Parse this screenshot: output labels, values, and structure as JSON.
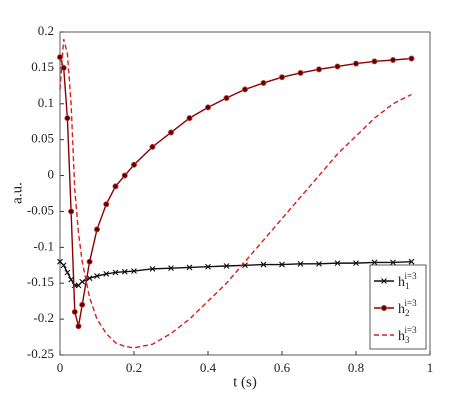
{
  "chart_data": {
    "type": "line",
    "xlabel": "t (s)",
    "ylabel": "a.u.",
    "x": [
      0,
      0.01,
      0.02,
      0.03,
      0.04,
      0.05,
      0.06,
      0.08,
      0.1,
      0.125,
      0.15,
      0.175,
      0.2,
      0.25,
      0.3,
      0.35,
      0.4,
      0.45,
      0.5,
      0.55,
      0.6,
      0.65,
      0.7,
      0.75,
      0.8,
      0.85,
      0.9,
      0.95
    ],
    "series": [
      {
        "name": "h1i=3",
        "color": "#111111",
        "marker": "x",
        "dash": false,
        "values": [
          -0.12,
          -0.125,
          -0.135,
          -0.145,
          -0.153,
          -0.153,
          -0.148,
          -0.143,
          -0.14,
          -0.137,
          -0.135,
          -0.134,
          -0.133,
          -0.13,
          -0.129,
          -0.128,
          -0.127,
          -0.126,
          -0.125,
          -0.124,
          -0.124,
          -0.123,
          -0.123,
          -0.122,
          -0.122,
          -0.121,
          -0.121,
          -0.12
        ]
      },
      {
        "name": "h2i=3",
        "color": "#8b0000",
        "marker": "o",
        "dash": false,
        "values": [
          0.165,
          0.15,
          0.08,
          -0.05,
          -0.19,
          -0.21,
          -0.18,
          -0.12,
          -0.075,
          -0.04,
          -0.015,
          0.0,
          0.015,
          0.04,
          0.06,
          0.08,
          0.095,
          0.108,
          0.12,
          0.129,
          0.137,
          0.143,
          0.148,
          0.152,
          0.156,
          0.159,
          0.161,
          0.163
        ]
      },
      {
        "name": "h3i=3",
        "color": "#d42020",
        "marker": "none",
        "dash": true,
        "values": [
          0.12,
          0.19,
          0.17,
          0.1,
          -0.02,
          -0.08,
          -0.12,
          -0.17,
          -0.2,
          -0.22,
          -0.233,
          -0.238,
          -0.24,
          -0.235,
          -0.22,
          -0.2,
          -0.175,
          -0.15,
          -0.12,
          -0.09,
          -0.06,
          -0.03,
          0.0,
          0.03,
          0.055,
          0.08,
          0.1,
          0.113
        ]
      }
    ],
    "xlim": [
      0,
      1
    ],
    "xticks": [
      0,
      0.2,
      0.4,
      0.6,
      0.8,
      1
    ],
    "ylim": [
      -0.25,
      0.2
    ],
    "yticks": [
      -0.25,
      -0.2,
      -0.15,
      -0.1,
      -0.05,
      0,
      0.05,
      0.1,
      0.15,
      0.2
    ],
    "grid": false,
    "legend": "lower right"
  }
}
